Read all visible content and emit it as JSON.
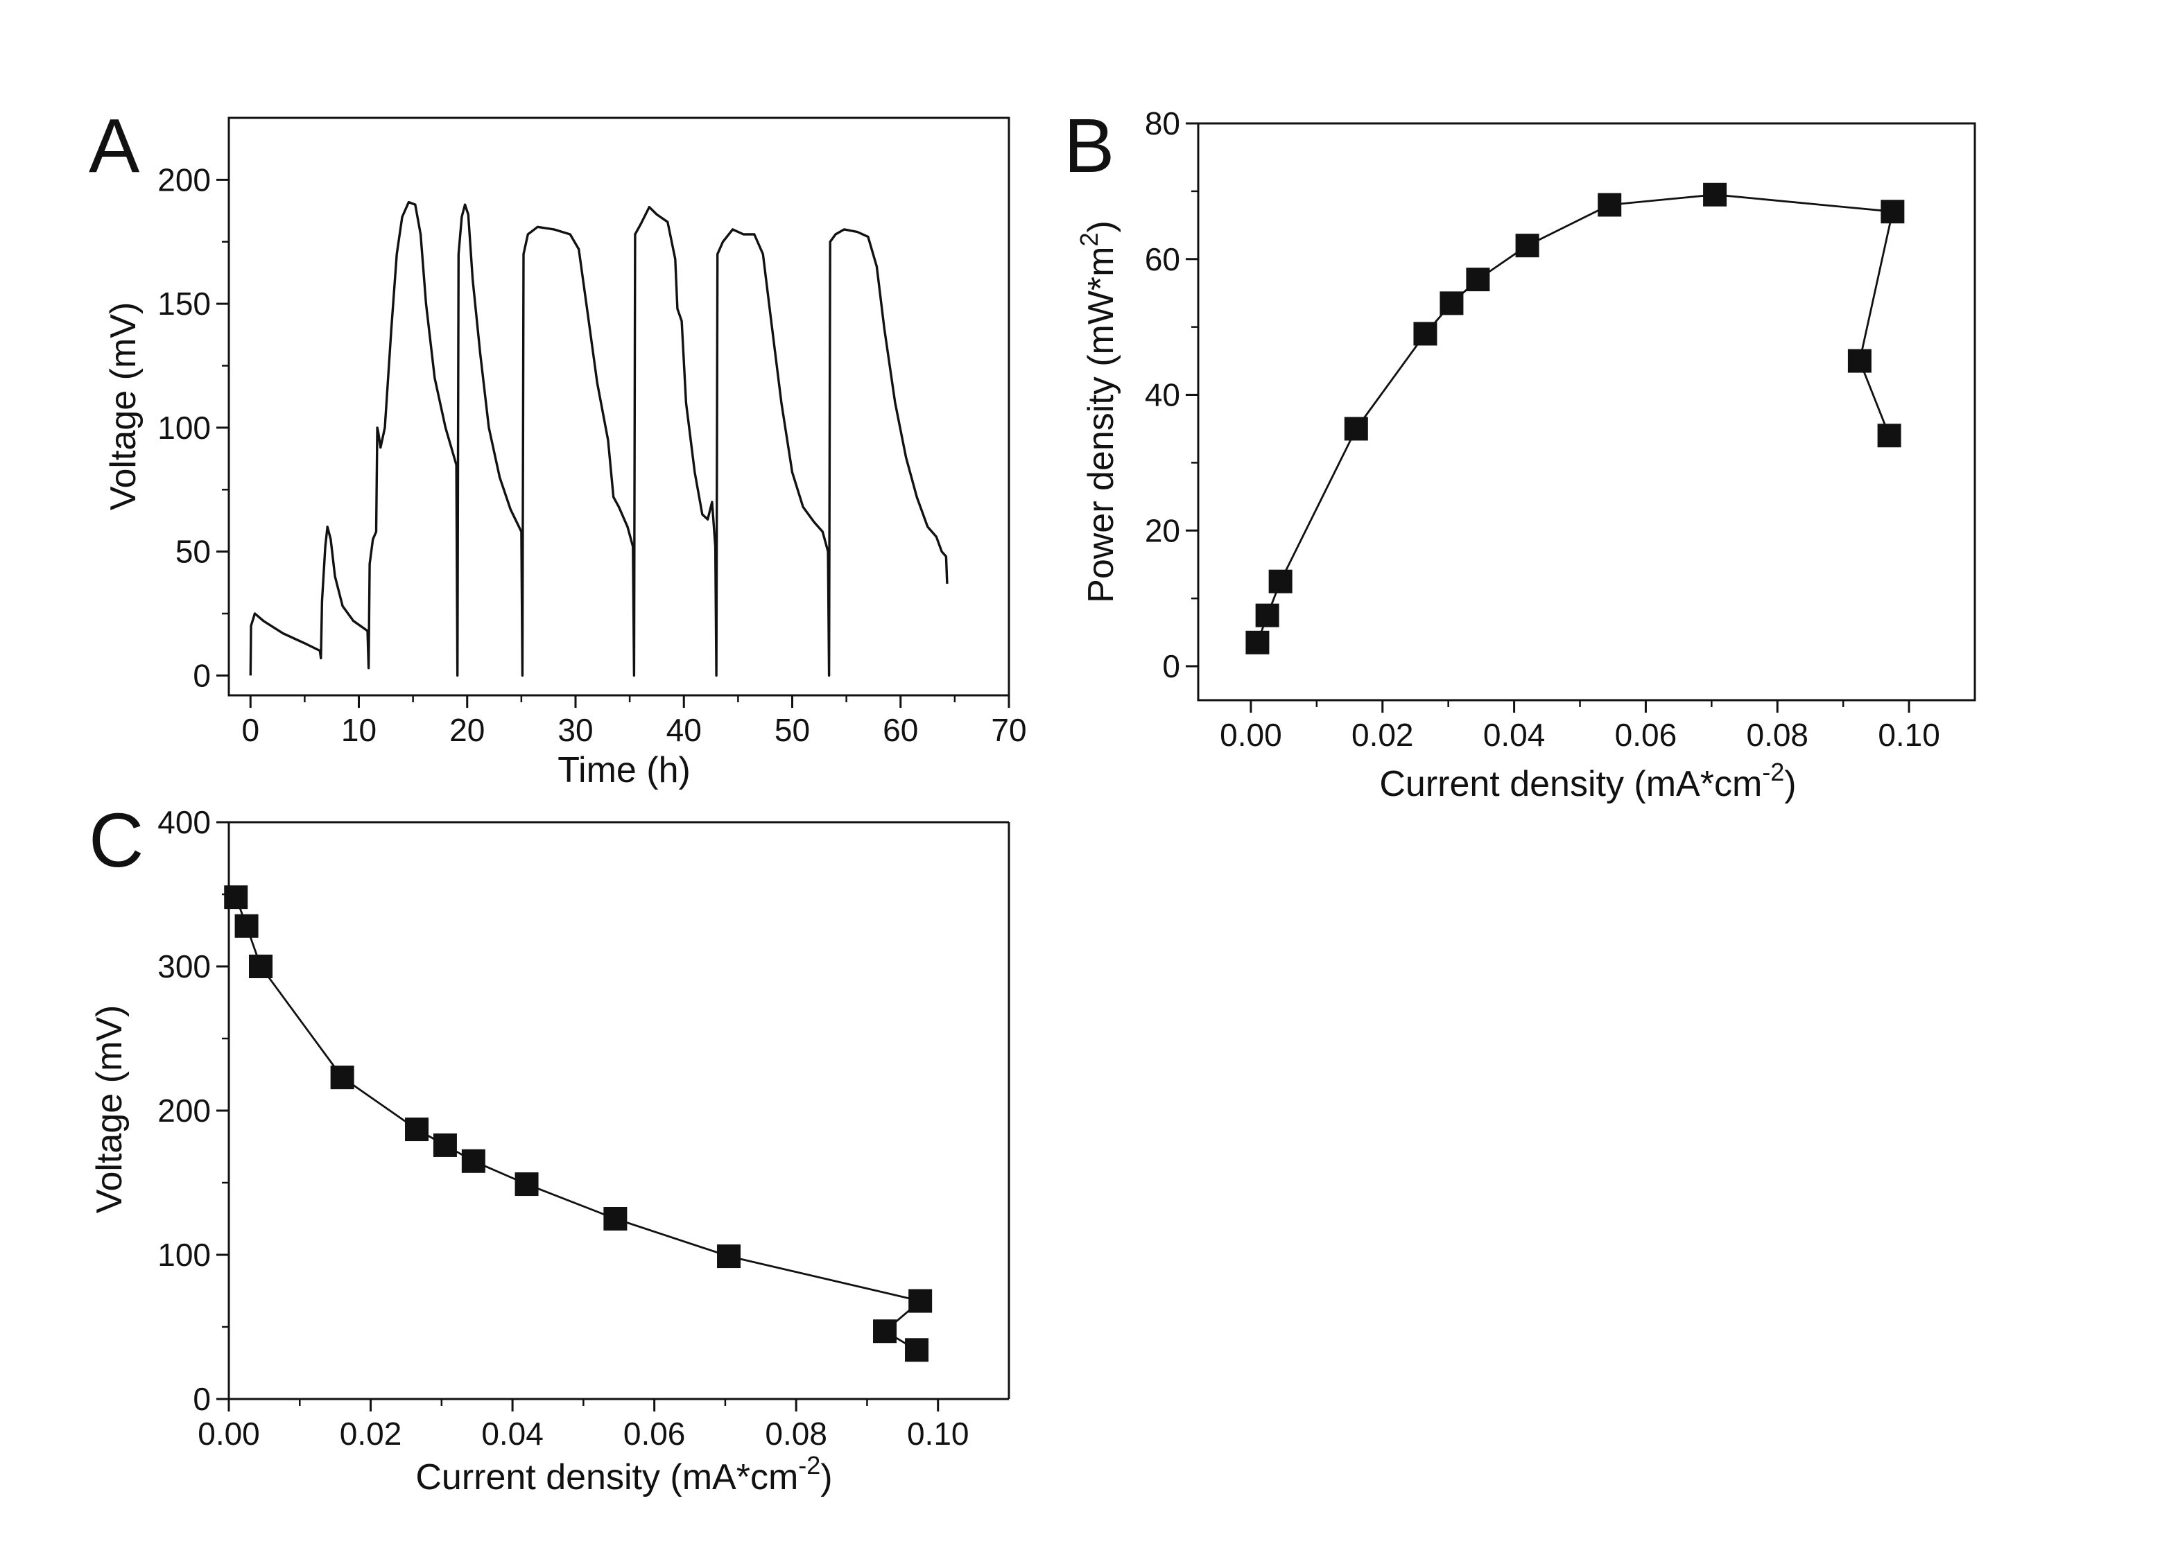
{
  "chart_data": [
    {
      "panel": "A",
      "type": "line",
      "xlabel": "Time (h)",
      "ylabel": "Voltage (mV)",
      "xlim": [
        -2,
        70
      ],
      "ylim": [
        -8,
        225
      ],
      "xticks": [
        0,
        10,
        20,
        30,
        40,
        50,
        60,
        70
      ],
      "yticks": [
        0,
        50,
        100,
        150,
        200
      ],
      "series": [
        {
          "name": "Voltage",
          "points": [
            [
              0.0,
              0
            ],
            [
              0.05,
              20
            ],
            [
              0.4,
              25
            ],
            [
              1.2,
              22
            ],
            [
              3,
              17
            ],
            [
              5,
              13
            ],
            [
              6.4,
              10
            ],
            [
              6.5,
              7
            ],
            [
              6.6,
              30
            ],
            [
              6.9,
              52
            ],
            [
              7.1,
              60
            ],
            [
              7.4,
              55
            ],
            [
              7.8,
              40
            ],
            [
              8.5,
              28
            ],
            [
              9.5,
              22
            ],
            [
              10.8,
              18
            ],
            [
              10.9,
              3
            ],
            [
              11.0,
              45
            ],
            [
              11.3,
              55
            ],
            [
              11.6,
              58
            ],
            [
              11.7,
              100
            ],
            [
              11.8,
              98
            ],
            [
              12.0,
              92
            ],
            [
              12.4,
              100
            ],
            [
              13.0,
              140
            ],
            [
              13.5,
              170
            ],
            [
              14.0,
              185
            ],
            [
              14.6,
              191
            ],
            [
              15.2,
              190
            ],
            [
              15.7,
              178
            ],
            [
              16.2,
              150
            ],
            [
              17.0,
              120
            ],
            [
              18.0,
              100
            ],
            [
              18.8,
              88
            ],
            [
              19.0,
              85
            ],
            [
              19.1,
              0
            ],
            [
              19.2,
              170
            ],
            [
              19.5,
              185
            ],
            [
              19.8,
              190
            ],
            [
              20.1,
              186
            ],
            [
              20.5,
              160
            ],
            [
              21.2,
              130
            ],
            [
              22.0,
              100
            ],
            [
              23.0,
              80
            ],
            [
              24.0,
              67
            ],
            [
              25.0,
              58
            ],
            [
              25.1,
              0
            ],
            [
              25.2,
              170
            ],
            [
              25.6,
              178
            ],
            [
              26.5,
              181
            ],
            [
              28.0,
              180
            ],
            [
              29.5,
              178
            ],
            [
              30.3,
              172
            ],
            [
              31.0,
              150
            ],
            [
              32.0,
              118
            ],
            [
              33.0,
              95
            ],
            [
              33.5,
              72
            ],
            [
              34.0,
              68
            ],
            [
              34.8,
              60
            ],
            [
              35.3,
              52
            ],
            [
              35.4,
              0
            ],
            [
              35.5,
              178
            ],
            [
              36.0,
              182
            ],
            [
              36.8,
              189
            ],
            [
              37.5,
              186
            ],
            [
              38.5,
              183
            ],
            [
              39.2,
              168
            ],
            [
              39.4,
              148
            ],
            [
              39.8,
              143
            ],
            [
              40.2,
              110
            ],
            [
              41.0,
              82
            ],
            [
              41.7,
              65
            ],
            [
              42.2,
              63
            ],
            [
              42.6,
              70
            ],
            [
              42.9,
              52
            ],
            [
              43.0,
              0
            ],
            [
              43.1,
              170
            ],
            [
              43.6,
              175
            ],
            [
              44.5,
              180
            ],
            [
              45.5,
              178
            ],
            [
              46.5,
              178
            ],
            [
              47.3,
              170
            ],
            [
              48.0,
              145
            ],
            [
              49.0,
              110
            ],
            [
              50.0,
              82
            ],
            [
              51.0,
              68
            ],
            [
              52.0,
              62
            ],
            [
              52.8,
              58
            ],
            [
              53.3,
              50
            ],
            [
              53.4,
              0
            ],
            [
              53.5,
              175
            ],
            [
              54.0,
              178
            ],
            [
              54.8,
              180
            ],
            [
              56.0,
              179
            ],
            [
              57.0,
              177
            ],
            [
              57.8,
              165
            ],
            [
              58.5,
              140
            ],
            [
              59.5,
              110
            ],
            [
              60.5,
              88
            ],
            [
              61.5,
              72
            ],
            [
              62.5,
              60
            ],
            [
              63.3,
              56
            ],
            [
              63.8,
              50
            ],
            [
              64.2,
              48
            ],
            [
              64.3,
              37
            ]
          ]
        }
      ]
    },
    {
      "panel": "B",
      "type": "line",
      "xlabel": "Current density (mA*cm",
      "xlabel_sup": "-2",
      "xlabel_end": ")",
      "ylabel": "Power density (mW*m",
      "ylabel_sup": "2",
      "ylabel_end": ")",
      "xlim": [
        -0.008,
        0.11
      ],
      "ylim": [
        -5,
        80
      ],
      "xticks": [
        0.0,
        0.02,
        0.04,
        0.06,
        0.08,
        0.1
      ],
      "xtick_labels": [
        "0.00",
        "0.02",
        "0.04",
        "0.06",
        "0.08",
        "0.10"
      ],
      "yticks": [
        0,
        20,
        40,
        60,
        80
      ],
      "series": [
        {
          "name": "Power density",
          "marker": "square",
          "points": [
            [
              0.001,
              3.5
            ],
            [
              0.0025,
              7.5
            ],
            [
              0.0045,
              12.5
            ],
            [
              0.016,
              35
            ],
            [
              0.0265,
              49
            ],
            [
              0.0305,
              53.5
            ],
            [
              0.0345,
              57
            ],
            [
              0.042,
              62
            ],
            [
              0.0545,
              68
            ],
            [
              0.0705,
              69.5
            ],
            [
              0.0975,
              67
            ],
            [
              0.0925,
              45
            ],
            [
              0.097,
              34
            ]
          ]
        }
      ]
    },
    {
      "panel": "C",
      "type": "line",
      "xlabel": "Current density (mA*cm",
      "xlabel_sup": "-2",
      "xlabel_end": ")",
      "ylabel": "Voltage (mV)",
      "xlim": [
        0,
        0.11
      ],
      "ylim": [
        0,
        400
      ],
      "xticks": [
        0.0,
        0.02,
        0.04,
        0.06,
        0.08,
        0.1
      ],
      "xtick_labels": [
        "0.00",
        "0.02",
        "0.04",
        "0.06",
        "0.08",
        "0.10"
      ],
      "yticks": [
        0,
        100,
        200,
        300,
        400
      ],
      "series": [
        {
          "name": "Voltage",
          "marker": "square",
          "points": [
            [
              0.001,
              348
            ],
            [
              0.0025,
              328
            ],
            [
              0.0045,
              300
            ],
            [
              0.016,
              223
            ],
            [
              0.0265,
              187
            ],
            [
              0.0305,
              176
            ],
            [
              0.0345,
              165
            ],
            [
              0.042,
              149
            ],
            [
              0.0545,
              125
            ],
            [
              0.0705,
              99
            ],
            [
              0.0975,
              68
            ],
            [
              0.0925,
              47
            ],
            [
              0.097,
              34
            ]
          ]
        }
      ]
    }
  ]
}
